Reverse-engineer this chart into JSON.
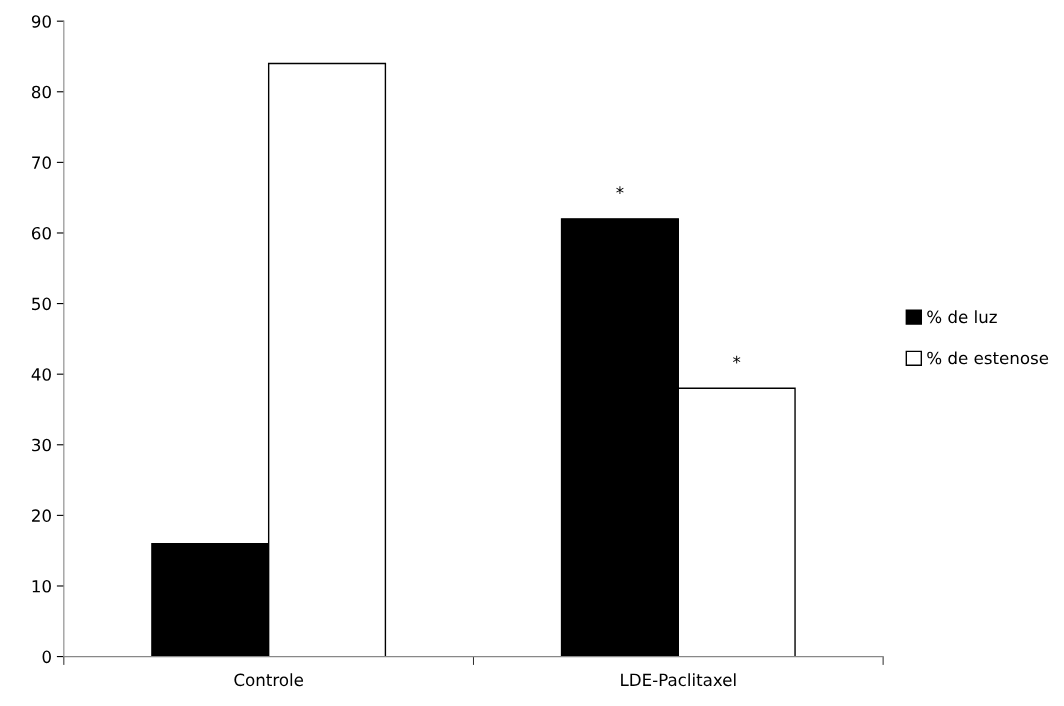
{
  "chart_data": {
    "type": "bar",
    "categories": [
      "Controle",
      "LDE-Paclitaxel"
    ],
    "series": [
      {
        "name": "% de luz",
        "color": "#000000",
        "values": [
          16,
          62
        ],
        "value_labels": [
          null,
          "*"
        ]
      },
      {
        "name": "% de estenose",
        "color": "#ffffff",
        "values": [
          84,
          38
        ],
        "value_labels": [
          null,
          "*"
        ]
      }
    ],
    "ylim": [
      0,
      90
    ],
    "yticks": [
      0,
      10,
      20,
      30,
      40,
      50,
      60,
      70,
      80,
      90
    ],
    "grid": false,
    "legend": "right"
  }
}
